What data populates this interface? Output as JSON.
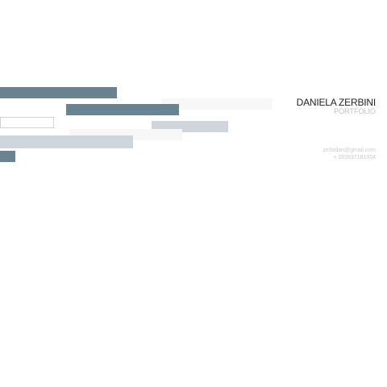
{
  "identity": {
    "name": "DANIELA ZERBINI",
    "subtitle": "PORTFOLIO"
  },
  "contact": {
    "email": "zerbidan@gmail.com",
    "phone": "+ 393937181904"
  },
  "colors": {
    "accent_dark": "#6a8390",
    "accent_light": "#ced5dc",
    "background": "#ffffff",
    "name_text": "#222222",
    "muted_text": "#c2c2c2"
  }
}
